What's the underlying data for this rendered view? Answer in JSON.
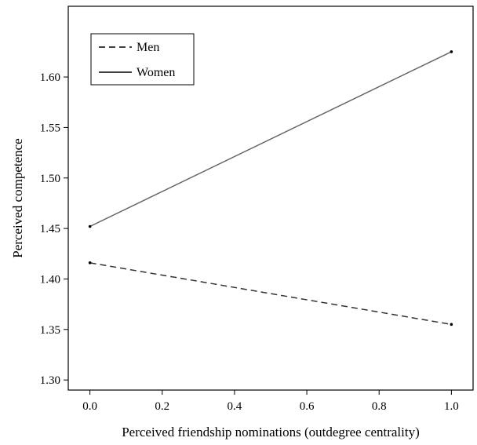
{
  "chart_data": {
    "type": "line",
    "xlabel": "Perceived friendship nominations (outdegree centrality)",
    "ylabel": "Perceived competence",
    "xlim": [
      -0.06,
      1.06
    ],
    "ylim": [
      1.29,
      1.67
    ],
    "xticks": [
      0.0,
      0.2,
      0.4,
      0.6,
      0.8,
      1.0
    ],
    "xtick_labels": [
      "0.0",
      "0.2",
      "0.4",
      "0.6",
      "0.8",
      "1.0"
    ],
    "yticks": [
      1.3,
      1.35,
      1.4,
      1.45,
      1.5,
      1.55,
      1.6
    ],
    "ytick_labels": [
      "1.30",
      "1.35",
      "1.40",
      "1.45",
      "1.50",
      "1.55",
      "1.60"
    ],
    "grid": false,
    "legend_position": "top-left",
    "series": [
      {
        "name": "Men",
        "line_style": "dashed",
        "color": "#333333",
        "x": [
          0.0,
          1.0
        ],
        "y": [
          1.416,
          1.355
        ]
      },
      {
        "name": "Women",
        "line_style": "solid",
        "color": "#666666",
        "x": [
          0.0,
          1.0
        ],
        "y": [
          1.452,
          1.625
        ]
      }
    ]
  }
}
